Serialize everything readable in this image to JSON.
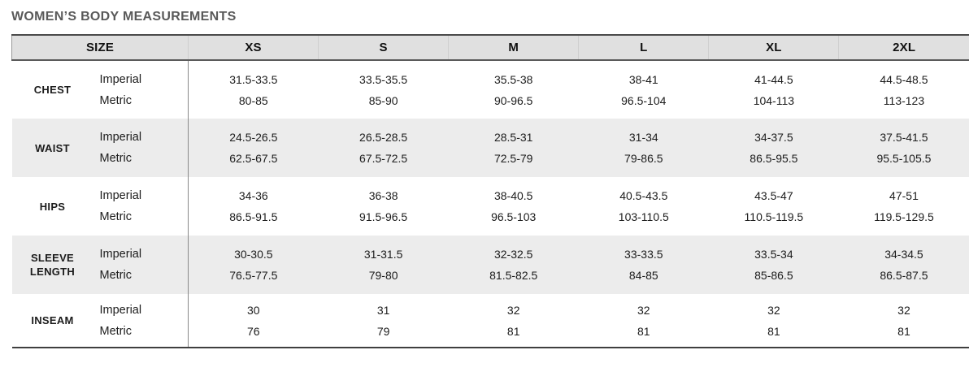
{
  "title": "WOMEN’S BODY MEASUREMENTS",
  "table": {
    "size_header": "SIZE",
    "sizes": [
      "XS",
      "S",
      "M",
      "L",
      "XL",
      "2XL"
    ],
    "unit_labels": [
      "Imperial",
      "Metric"
    ],
    "rows": [
      {
        "name": "CHEST",
        "imperial": [
          "31.5-33.5",
          "33.5-35.5",
          "35.5-38",
          "38-41",
          "41-44.5",
          "44.5-48.5"
        ],
        "metric": [
          "80-85",
          "85-90",
          "90-96.5",
          "96.5-104",
          "104-113",
          "113-123"
        ]
      },
      {
        "name": "WAIST",
        "imperial": [
          "24.5-26.5",
          "26.5-28.5",
          "28.5-31",
          "31-34",
          "34-37.5",
          "37.5-41.5"
        ],
        "metric": [
          "62.5-67.5",
          "67.5-72.5",
          "72.5-79",
          "79-86.5",
          "86.5-95.5",
          "95.5-105.5"
        ]
      },
      {
        "name": "HIPS",
        "imperial": [
          "34-36",
          "36-38",
          "38-40.5",
          "40.5-43.5",
          "43.5-47",
          "47-51"
        ],
        "metric": [
          "86.5-91.5",
          "91.5-96.5",
          "96.5-103",
          "103-110.5",
          "110.5-119.5",
          "119.5-129.5"
        ]
      },
      {
        "name": "SLEEVE LENGTH",
        "imperial": [
          "30-30.5",
          "31-31.5",
          "32-32.5",
          "33-33.5",
          "33.5-34",
          "34-34.5"
        ],
        "metric": [
          "76.5-77.5",
          "79-80",
          "81.5-82.5",
          "84-85",
          "85-86.5",
          "86.5-87.5"
        ]
      },
      {
        "name": "INSEAM",
        "imperial": [
          "30",
          "31",
          "32",
          "32",
          "32",
          "32"
        ],
        "metric": [
          "76",
          "79",
          "81",
          "81",
          "81",
          "81"
        ]
      }
    ]
  },
  "colors": {
    "title_text": "#595959",
    "header_bg": "#e0e0e0",
    "stripe_bg": "#ececec",
    "border_dark": "#4a4a4a",
    "divider": "#8a8a8a",
    "body_text": "#1c1c1c"
  }
}
